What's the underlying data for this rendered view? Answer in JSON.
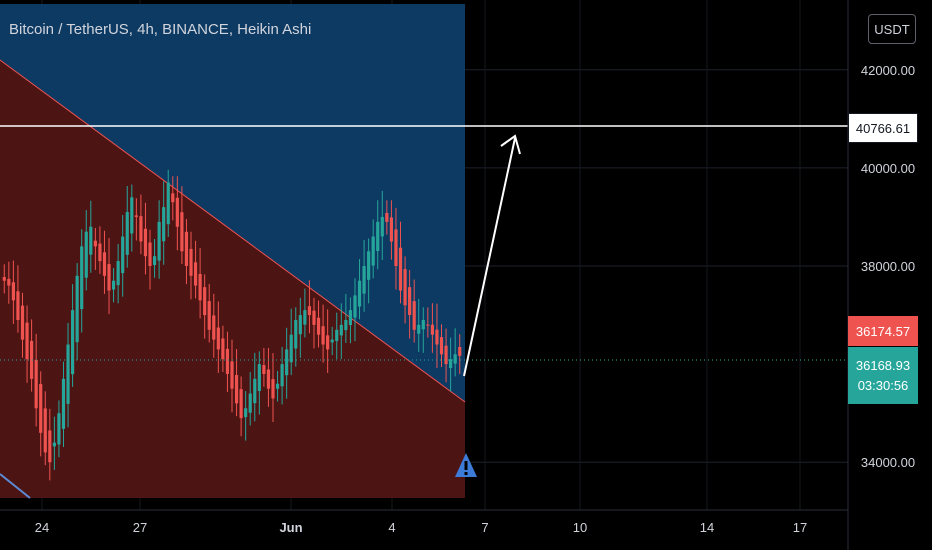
{
  "pane": {
    "title": "Bitcoin / TetherUS, 4h, BINANCE, Heikin Ashi",
    "currency": "USDT"
  },
  "price_scale": {
    "labels": [
      "42000.00",
      "40000.00",
      "38000.00",
      "34000.00"
    ],
    "level_tag": "40766.61",
    "last_open_tag": "36174.57",
    "last_close_tag": "36168.93",
    "countdown": "03:30:56"
  },
  "colors": {
    "up": "#26a69a",
    "down": "#ef5350",
    "blue_zone": "#0d3a63",
    "red_zone": "#4d1414",
    "background": "#000000"
  },
  "chart_data": {
    "type": "candlestick",
    "title": "Bitcoin / TetherUS, 4h, BINANCE, Heikin Ashi",
    "symbol": "BTCUSDT",
    "interval": "4h",
    "exchange": "BINANCE",
    "style": "Heikin Ashi",
    "ylim": [
      33500,
      43000
    ],
    "y_ticks": [
      42000,
      40000,
      38000,
      34000
    ],
    "x_ticks": [
      "24",
      "27",
      "Jun",
      "4",
      "7",
      "10",
      "14",
      "17"
    ],
    "horizontal_level": 40766.61,
    "last_price": 36168.93,
    "last_open": 36174.57,
    "candles_close": [
      37700,
      37600,
      37300,
      36900,
      36500,
      36100,
      35700,
      35100,
      34600,
      34200,
      34000,
      34400,
      35000,
      35700,
      36400,
      37100,
      37800,
      38400,
      38700,
      38800,
      38400,
      38100,
      37800,
      37500,
      37700,
      38100,
      38600,
      39100,
      39400,
      39000,
      38500,
      38200,
      38000,
      38200,
      38900,
      39200,
      39700,
      39300,
      38800,
      38300,
      38000,
      37800,
      37600,
      37300,
      37000,
      36700,
      36500,
      36300,
      36100,
      35800,
      35500,
      35200,
      34900,
      35100,
      35400,
      35700,
      36000,
      35800,
      35500,
      35300,
      35600,
      36000,
      36300,
      36600,
      36900,
      37000,
      37100,
      37000,
      36800,
      36600,
      36400,
      36300,
      36500,
      36700,
      36800,
      36900,
      37100,
      37400,
      37700,
      38000,
      38300,
      38600,
      38900,
      39000,
      38900,
      38500,
      38000,
      37500,
      37200,
      37000,
      36700,
      36800,
      36900,
      36800,
      36600,
      36400,
      36200,
      36000,
      36100,
      36200,
      36169
    ],
    "candles_up": [
      false,
      false,
      false,
      false,
      false,
      false,
      false,
      false,
      false,
      false,
      false,
      true,
      true,
      true,
      true,
      true,
      true,
      true,
      true,
      true,
      false,
      false,
      false,
      false,
      true,
      true,
      true,
      true,
      true,
      false,
      false,
      false,
      false,
      true,
      true,
      true,
      true,
      false,
      false,
      false,
      false,
      false,
      false,
      false,
      false,
      false,
      false,
      false,
      false,
      false,
      false,
      false,
      false,
      true,
      true,
      true,
      true,
      false,
      false,
      false,
      true,
      true,
      true,
      true,
      true,
      true,
      true,
      false,
      false,
      false,
      false,
      false,
      true,
      true,
      true,
      true,
      true,
      true,
      true,
      true,
      true,
      true,
      true,
      true,
      false,
      false,
      false,
      false,
      false,
      false,
      false,
      true,
      true,
      false,
      false,
      false,
      false,
      false,
      true,
      true,
      false
    ],
    "annotations": [
      {
        "type": "rectangle",
        "color": "blue",
        "x_range": [
          "20",
          "Jun 6"
        ],
        "y_range": [
          33500,
          43000
        ]
      },
      {
        "type": "triangle",
        "color": "red",
        "description": "descending trendline zone"
      },
      {
        "type": "arrow",
        "direction": "up",
        "from": 35800,
        "to": 40766.61
      }
    ]
  }
}
